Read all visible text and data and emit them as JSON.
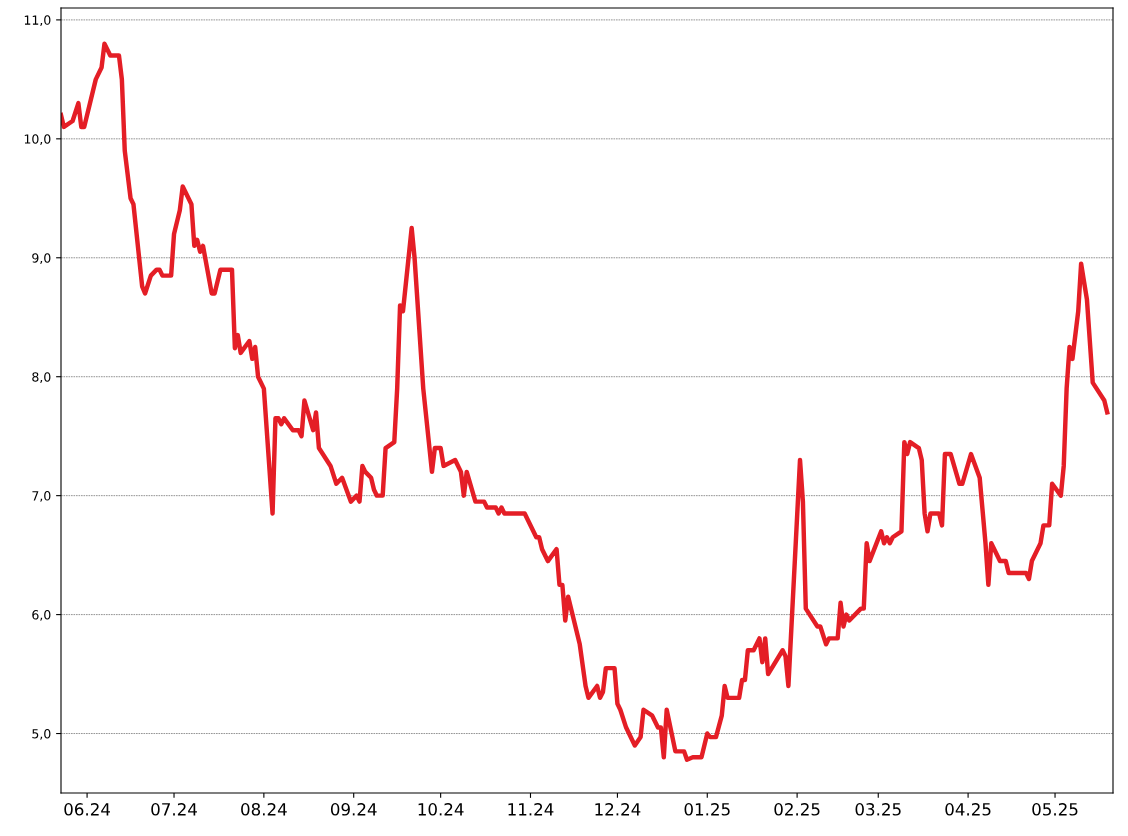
{
  "chart_data": {
    "type": "line",
    "line_style": "solid",
    "marker": "none",
    "grid": "y",
    "xlim": [
      "2024-05-23",
      "2025-05-21"
    ],
    "xticks": [
      {
        "value": "2024-06-01",
        "label": "06.24"
      },
      {
        "value": "2024-07-01",
        "label": "07.24"
      },
      {
        "value": "2024-08-01",
        "label": "08.24"
      },
      {
        "value": "2024-09-01",
        "label": "09.24"
      },
      {
        "value": "2024-10-01",
        "label": "10.24"
      },
      {
        "value": "2024-11-01",
        "label": "11.24"
      },
      {
        "value": "2024-12-01",
        "label": "12.24"
      },
      {
        "value": "2025-01-01",
        "label": "01.25"
      },
      {
        "value": "2025-02-01",
        "label": "02.25"
      },
      {
        "value": "2025-03-01",
        "label": "03.25"
      },
      {
        "value": "2025-04-01",
        "label": "04.25"
      },
      {
        "value": "2025-05-01",
        "label": "05.25"
      }
    ],
    "ylim": [
      4.5,
      11.1
    ],
    "yticks": [
      {
        "value": 5,
        "label": "5,0"
      },
      {
        "value": 6,
        "label": "6,0"
      },
      {
        "value": 7,
        "label": "7,0"
      },
      {
        "value": 8,
        "label": "8,0"
      },
      {
        "value": 9,
        "label": "9,0"
      },
      {
        "value": 10,
        "label": "10,0"
      },
      {
        "value": 11,
        "label": "11,0"
      }
    ],
    "x": [
      "2024-05-23",
      "2024-05-24",
      "2024-05-27",
      "2024-05-29",
      "2024-05-30",
      "2024-05-31",
      "2024-06-04",
      "2024-06-06",
      "2024-06-07",
      "2024-06-09",
      "2024-06-12",
      "2024-06-13",
      "2024-06-14",
      "2024-06-16",
      "2024-06-17",
      "2024-06-20",
      "2024-06-21",
      "2024-06-23",
      "2024-06-25",
      "2024-06-26",
      "2024-06-27",
      "2024-06-30",
      "2024-07-01",
      "2024-07-03",
      "2024-07-04",
      "2024-07-07",
      "2024-07-08",
      "2024-07-09",
      "2024-07-10",
      "2024-07-11",
      "2024-07-14",
      "2024-07-15",
      "2024-07-17",
      "2024-07-21",
      "2024-07-22",
      "2024-07-23",
      "2024-07-24",
      "2024-07-27",
      "2024-07-28",
      "2024-07-29",
      "2024-07-30",
      "2024-08-01",
      "2024-08-04",
      "2024-08-05",
      "2024-08-06",
      "2024-08-07",
      "2024-08-08",
      "2024-08-11",
      "2024-08-13",
      "2024-08-14",
      "2024-08-15",
      "2024-08-18",
      "2024-08-19",
      "2024-08-20",
      "2024-08-24",
      "2024-08-26",
      "2024-08-28",
      "2024-08-31",
      "2024-09-02",
      "2024-09-03",
      "2024-09-04",
      "2024-09-05",
      "2024-09-07",
      "2024-09-08",
      "2024-09-09",
      "2024-09-11",
      "2024-09-12",
      "2024-09-15",
      "2024-09-16",
      "2024-09-17",
      "2024-09-18",
      "2024-09-21",
      "2024-09-22",
      "2024-09-25",
      "2024-09-28",
      "2024-09-29",
      "2024-10-01",
      "2024-10-02",
      "2024-10-06",
      "2024-10-08",
      "2024-10-09",
      "2024-10-10",
      "2024-10-13",
      "2024-10-16",
      "2024-10-17",
      "2024-10-20",
      "2024-10-21",
      "2024-10-22",
      "2024-10-23",
      "2024-10-30",
      "2024-11-03",
      "2024-11-04",
      "2024-11-05",
      "2024-11-07",
      "2024-11-10",
      "2024-11-11",
      "2024-11-12",
      "2024-11-13",
      "2024-11-14",
      "2024-11-16",
      "2024-11-18",
      "2024-11-20",
      "2024-11-21",
      "2024-11-24",
      "2024-11-25",
      "2024-11-26",
      "2024-11-27",
      "2024-11-30",
      "2024-12-01",
      "2024-12-02",
      "2024-12-04",
      "2024-12-07",
      "2024-12-09",
      "2024-12-10",
      "2024-12-13",
      "2024-12-15",
      "2024-12-16",
      "2024-12-17",
      "2024-12-18",
      "2024-12-21",
      "2024-12-24",
      "2024-12-25",
      "2024-12-27",
      "2024-12-30",
      "2025-01-01",
      "2025-01-02",
      "2025-01-04",
      "2025-01-06",
      "2025-01-07",
      "2025-01-08",
      "2025-01-12",
      "2025-01-13",
      "2025-01-14",
      "2025-01-15",
      "2025-01-17",
      "2025-01-19",
      "2025-01-20",
      "2025-01-21",
      "2025-01-22",
      "2025-01-27",
      "2025-01-28",
      "2025-01-29",
      "2025-02-02",
      "2025-02-03",
      "2025-02-04",
      "2025-02-08",
      "2025-02-09",
      "2025-02-11",
      "2025-02-12",
      "2025-02-15",
      "2025-02-16",
      "2025-02-17",
      "2025-02-18",
      "2025-02-19",
      "2025-02-23",
      "2025-02-24",
      "2025-02-25",
      "2025-02-26",
      "2025-03-02",
      "2025-03-03",
      "2025-03-04",
      "2025-03-05",
      "2025-03-06",
      "2025-03-09",
      "2025-03-10",
      "2025-03-11",
      "2025-03-12",
      "2025-03-15",
      "2025-03-16",
      "2025-03-17",
      "2025-03-18",
      "2025-03-19",
      "2025-03-22",
      "2025-03-23",
      "2025-03-24",
      "2025-03-26",
      "2025-03-29",
      "2025-03-30",
      "2025-04-02",
      "2025-04-05",
      "2025-04-07",
      "2025-04-08",
      "2025-04-09",
      "2025-04-12",
      "2025-04-14",
      "2025-04-15",
      "2025-04-21",
      "2025-04-22",
      "2025-04-23",
      "2025-04-26",
      "2025-04-27",
      "2025-04-29",
      "2025-04-30",
      "2025-05-03",
      "2025-05-04",
      "2025-05-05",
      "2025-05-06",
      "2025-05-07",
      "2025-05-09",
      "2025-05-10",
      "2025-05-11",
      "2025-05-12",
      "2025-05-14",
      "2025-05-18",
      "2025-05-19"
    ],
    "series": [
      {
        "color": "#e41e26",
        "values": [
          10.2,
          10.1,
          10.15,
          10.3,
          10.1,
          10.1,
          10.5,
          10.6,
          10.8,
          10.7,
          10.7,
          10.5,
          9.9,
          9.5,
          9.45,
          8.76,
          8.7,
          8.85,
          8.9,
          8.9,
          8.85,
          8.85,
          9.2,
          9.4,
          9.6,
          9.45,
          9.1,
          9.15,
          9.05,
          9.1,
          8.7,
          8.7,
          8.9,
          8.9,
          8.24,
          8.35,
          8.2,
          8.3,
          8.15,
          8.25,
          8.0,
          7.9,
          6.85,
          7.65,
          7.65,
          7.6,
          7.65,
          7.55,
          7.55,
          7.5,
          7.8,
          7.55,
          7.7,
          7.4,
          7.25,
          7.1,
          7.15,
          6.95,
          7.0,
          6.95,
          7.25,
          7.2,
          7.15,
          7.05,
          7.0,
          7.0,
          7.4,
          7.45,
          7.9,
          8.6,
          8.55,
          9.25,
          9.0,
          7.9,
          7.2,
          7.4,
          7.4,
          7.25,
          7.3,
          7.2,
          7.0,
          7.2,
          6.95,
          6.95,
          6.9,
          6.9,
          6.85,
          6.9,
          6.85,
          6.85,
          6.65,
          6.65,
          6.55,
          6.45,
          6.55,
          6.25,
          6.25,
          5.95,
          6.15,
          5.95,
          5.75,
          5.4,
          5.3,
          5.4,
          5.3,
          5.35,
          5.55,
          5.55,
          5.25,
          5.2,
          5.05,
          4.9,
          4.97,
          5.2,
          5.15,
          5.05,
          5.05,
          4.8,
          5.2,
          4.85,
          4.85,
          4.78,
          4.8,
          4.8,
          5.0,
          4.97,
          4.97,
          5.15,
          5.4,
          5.3,
          5.3,
          5.45,
          5.45,
          5.7,
          5.7,
          5.8,
          5.6,
          5.8,
          5.5,
          5.7,
          5.65,
          5.4,
          7.3,
          6.95,
          6.05,
          5.9,
          5.9,
          5.75,
          5.8,
          5.8,
          6.1,
          5.9,
          6.0,
          5.95,
          6.05,
          6.05,
          6.6,
          6.45,
          6.7,
          6.6,
          6.65,
          6.6,
          6.65,
          6.7,
          7.45,
          7.35,
          7.45,
          7.4,
          7.3,
          6.85,
          6.7,
          6.85,
          6.85,
          6.75,
          7.35,
          7.35,
          7.1,
          7.1,
          7.35,
          7.15,
          6.6,
          6.25,
          6.6,
          6.45,
          6.45,
          6.35,
          6.35,
          6.3,
          6.45,
          6.6,
          6.75,
          6.75,
          7.1,
          7.0,
          7.25,
          7.9,
          8.25,
          8.15,
          8.55,
          8.95,
          8.8,
          8.65,
          7.95,
          7.8,
          7.7
        ]
      }
    ]
  }
}
